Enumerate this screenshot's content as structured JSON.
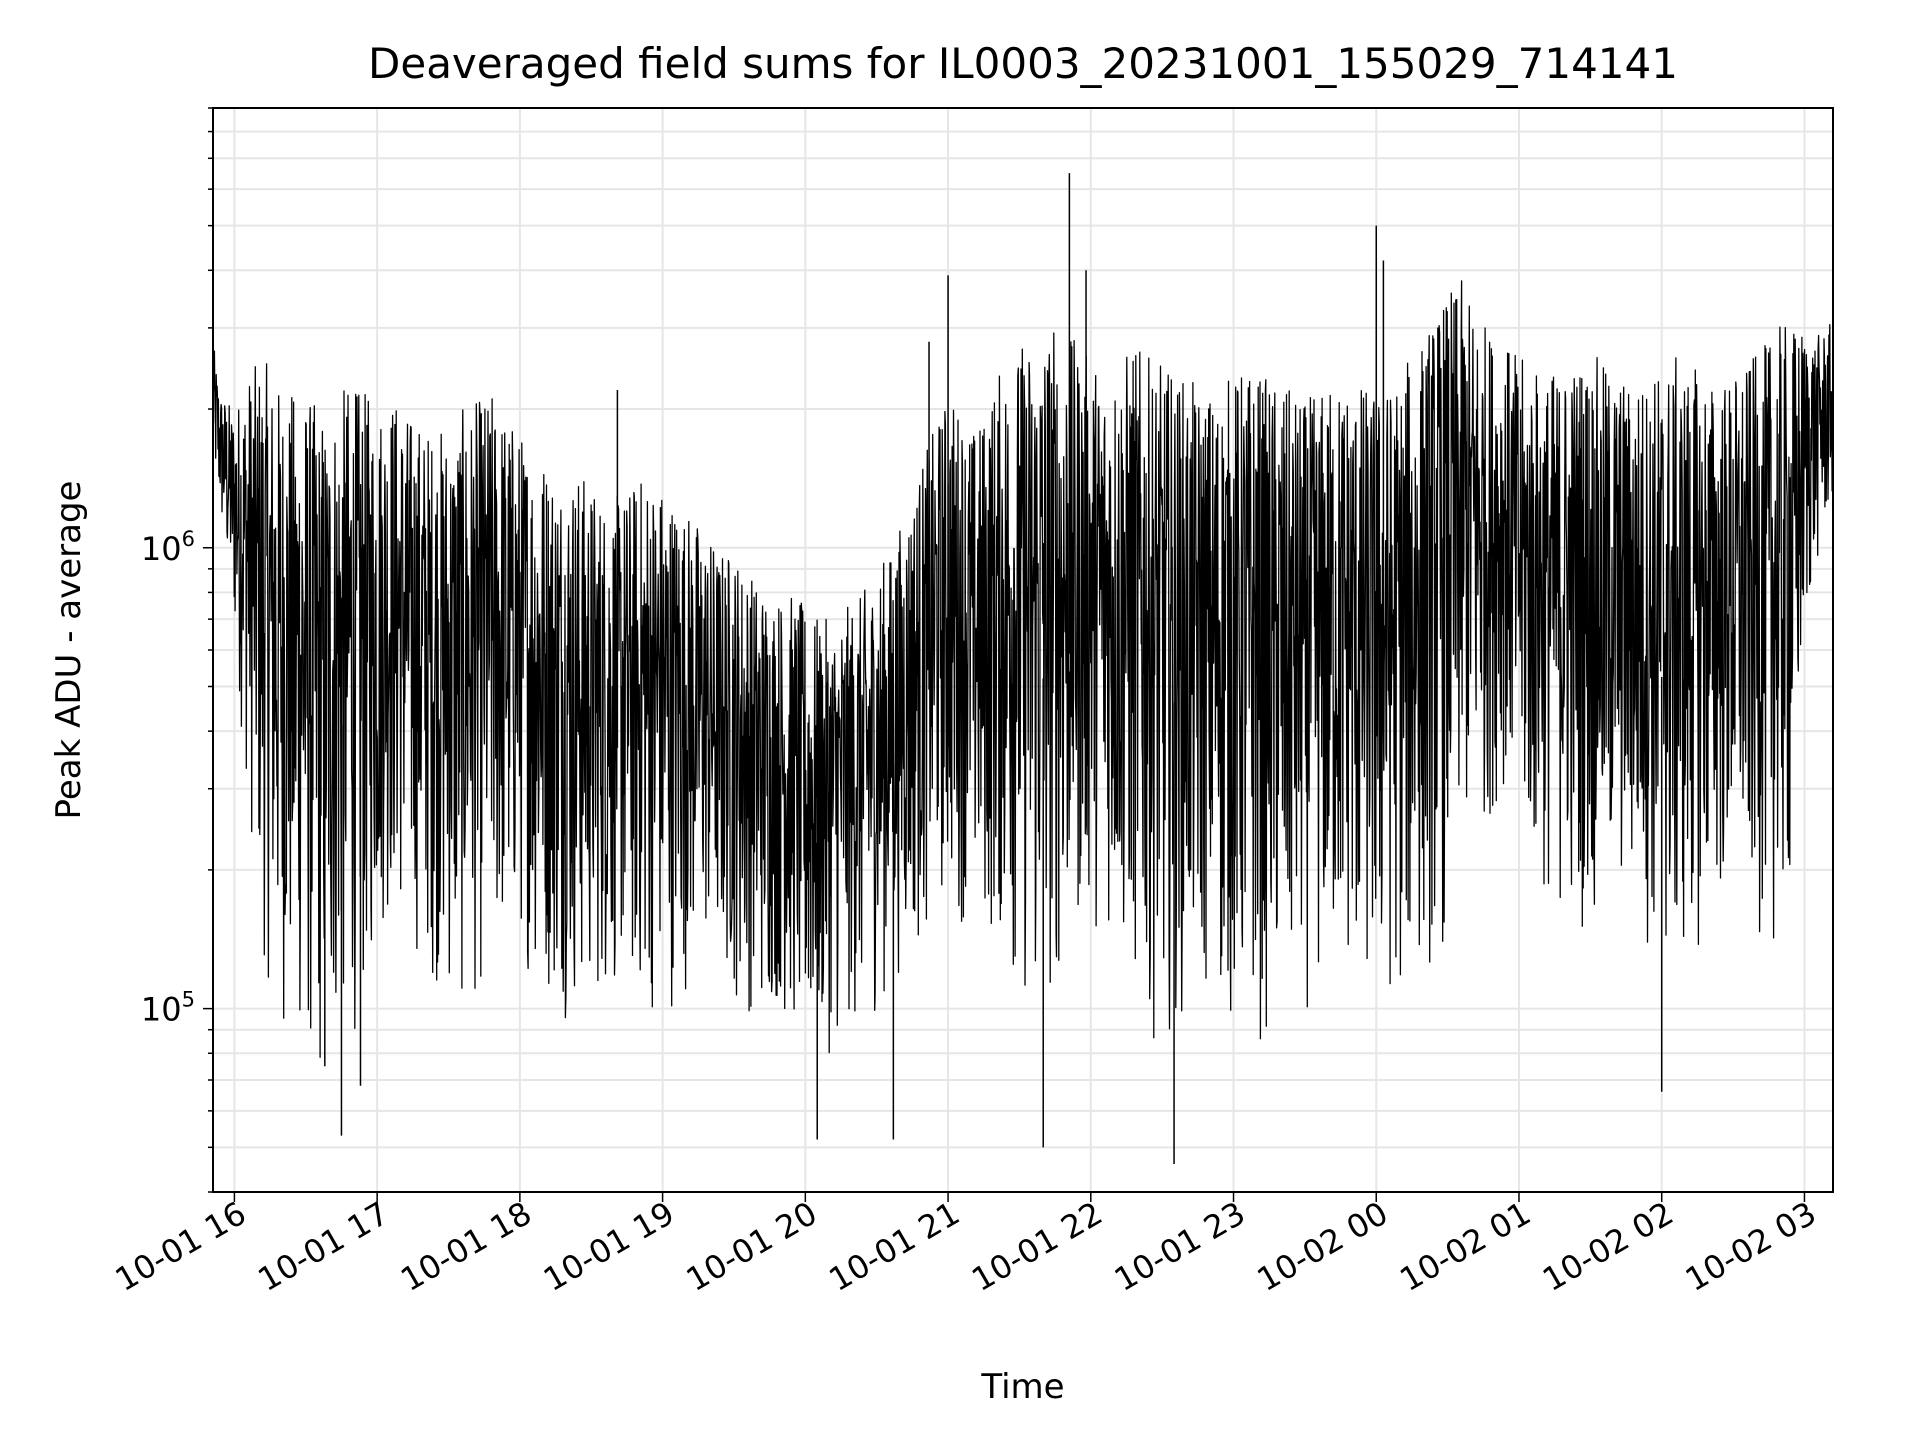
{
  "chart_data": {
    "type": "line",
    "title": "Deaveraged field sums for IL0003_20231001_155029_714141",
    "xlabel": "Time",
    "ylabel": "Peak ADU - average",
    "yscale": "log",
    "xlim": [
      "2023-10-01 15:51",
      "2023-10-02 03:12"
    ],
    "ylim": [
      40000,
      9000000
    ],
    "grid": true,
    "series_color": "#000000",
    "x_ticks": [
      {
        "value": "2023-10-01 16:00",
        "label": "10-01 16"
      },
      {
        "value": "2023-10-01 17:00",
        "label": "10-01 17"
      },
      {
        "value": "2023-10-01 18:00",
        "label": "10-01 18"
      },
      {
        "value": "2023-10-01 19:00",
        "label": "10-01 19"
      },
      {
        "value": "2023-10-01 20:00",
        "label": "10-01 20"
      },
      {
        "value": "2023-10-01 21:00",
        "label": "10-01 21"
      },
      {
        "value": "2023-10-01 22:00",
        "label": "10-01 22"
      },
      {
        "value": "2023-10-01 23:00",
        "label": "10-01 23"
      },
      {
        "value": "2023-10-02 00:00",
        "label": "10-02 00"
      },
      {
        "value": "2023-10-02 01:00",
        "label": "10-02 01"
      },
      {
        "value": "2023-10-02 02:00",
        "label": "10-02 02"
      },
      {
        "value": "2023-10-02 03:00",
        "label": "10-02 03"
      }
    ],
    "y_ticks": [
      {
        "value": 100000,
        "base": "10",
        "exp": "5"
      },
      {
        "value": 1000000,
        "base": "10",
        "exp": "6"
      }
    ],
    "series": [
      {
        "x": [
          "2023-10-01 15:51",
          "2023-10-01 15:54",
          "2023-10-01 16:00",
          "2023-10-01 16:06",
          "2023-10-01 16:12",
          "2023-10-01 16:18",
          "2023-10-01 16:24",
          "2023-10-01 16:30",
          "2023-10-01 16:36",
          "2023-10-01 16:42",
          "2023-10-01 16:48",
          "2023-10-01 16:54",
          "2023-10-01 17:00",
          "2023-10-01 17:06",
          "2023-10-01 17:12",
          "2023-10-01 17:18",
          "2023-10-01 17:24",
          "2023-10-01 17:30",
          "2023-10-01 17:36",
          "2023-10-01 17:42",
          "2023-10-01 17:48",
          "2023-10-01 17:54",
          "2023-10-01 18:00",
          "2023-10-01 18:06",
          "2023-10-01 18:12",
          "2023-10-01 18:18",
          "2023-10-01 18:24",
          "2023-10-01 18:30",
          "2023-10-01 18:36",
          "2023-10-01 18:42",
          "2023-10-01 18:48",
          "2023-10-01 18:54",
          "2023-10-01 19:00",
          "2023-10-01 19:06",
          "2023-10-01 19:12",
          "2023-10-01 19:18",
          "2023-10-01 19:24",
          "2023-10-01 19:30",
          "2023-10-01 19:36",
          "2023-10-01 19:42",
          "2023-10-01 19:48",
          "2023-10-01 19:54",
          "2023-10-01 20:00",
          "2023-10-01 20:06",
          "2023-10-01 20:12",
          "2023-10-01 20:18",
          "2023-10-01 20:24",
          "2023-10-01 20:30",
          "2023-10-01 20:36",
          "2023-10-01 20:42",
          "2023-10-01 20:48",
          "2023-10-01 20:54",
          "2023-10-01 21:00",
          "2023-10-01 21:06",
          "2023-10-01 21:12",
          "2023-10-01 21:18",
          "2023-10-01 21:24",
          "2023-10-01 21:30",
          "2023-10-01 21:36",
          "2023-10-01 21:42",
          "2023-10-01 21:48",
          "2023-10-01 21:54",
          "2023-10-01 22:00",
          "2023-10-01 22:06",
          "2023-10-01 22:12",
          "2023-10-01 22:18",
          "2023-10-01 22:24",
          "2023-10-01 22:30",
          "2023-10-01 22:36",
          "2023-10-01 22:42",
          "2023-10-01 22:48",
          "2023-10-01 22:54",
          "2023-10-01 23:00",
          "2023-10-01 23:06",
          "2023-10-01 23:12",
          "2023-10-01 23:18",
          "2023-10-01 23:24",
          "2023-10-01 23:30",
          "2023-10-01 23:36",
          "2023-10-01 23:42",
          "2023-10-01 23:48",
          "2023-10-01 23:54",
          "2023-10-02 00:00",
          "2023-10-02 00:06",
          "2023-10-02 00:12",
          "2023-10-02 00:18",
          "2023-10-02 00:24",
          "2023-10-02 00:30",
          "2023-10-02 00:36",
          "2023-10-02 00:42",
          "2023-10-02 00:48",
          "2023-10-02 00:54",
          "2023-10-02 01:00",
          "2023-10-02 01:06",
          "2023-10-02 01:12",
          "2023-10-02 01:18",
          "2023-10-02 01:24",
          "2023-10-02 01:30",
          "2023-10-02 01:36",
          "2023-10-02 01:42",
          "2023-10-02 01:48",
          "2023-10-02 01:54",
          "2023-10-02 02:00",
          "2023-10-02 02:06",
          "2023-10-02 02:12",
          "2023-10-02 02:18",
          "2023-10-02 02:24",
          "2023-10-02 02:30",
          "2023-10-02 02:36",
          "2023-10-02 02:42",
          "2023-10-02 02:48",
          "2023-10-02 02:54",
          "2023-10-02 03:00",
          "2023-10-02 03:06",
          "2023-10-02 03:12"
        ],
        "low": [
          1400000,
          1100000,
          600000,
          250000,
          120000,
          90000,
          80000,
          70000,
          60000,
          75000,
          80000,
          90000,
          130000,
          150000,
          140000,
          120000,
          110000,
          95000,
          90000,
          100000,
          110000,
          120000,
          130000,
          110000,
          100000,
          95000,
          90000,
          95000,
          100000,
          105000,
          95000,
          90000,
          95000,
          100000,
          110000,
          120000,
          115000,
          100000,
          95000,
          90000,
          95000,
          85000,
          70000,
          75000,
          80000,
          85000,
          90000,
          95000,
          110000,
          120000,
          130000,
          150000,
          160000,
          150000,
          140000,
          130000,
          120000,
          100000,
          80000,
          90000,
          110000,
          130000,
          150000,
          140000,
          120000,
          100000,
          90000,
          80000,
          90000,
          100000,
          100000,
          90000,
          85000,
          80000,
          80000,
          85000,
          90000,
          95000,
          100000,
          110000,
          105000,
          95000,
          90000,
          95000,
          100000,
          110000,
          120000,
          130000,
          200000,
          220000,
          250000,
          300000,
          200000,
          180000,
          160000,
          150000,
          150000,
          140000,
          150000,
          160000,
          150000,
          130000,
          110000,
          100000,
          120000,
          140000,
          150000,
          160000,
          150000,
          140000,
          130000,
          140000,
          600000,
          900000,
          1200000
        ],
        "high": [
          2800000,
          2200000,
          2000000,
          2400000,
          2600000,
          2300000,
          2200000,
          2200000,
          2000000,
          2100000,
          2300000,
          2200000,
          2100000,
          2200000,
          2000000,
          1900000,
          1800000,
          1900000,
          2000000,
          2100000,
          2200000,
          2000000,
          1800000,
          1700000,
          1600000,
          1500000,
          1500000,
          1400000,
          1300000,
          1300000,
          1400000,
          1500000,
          1400000,
          1300000,
          1200000,
          1100000,
          1000000,
          1000000,
          900000,
          850000,
          800000,
          800000,
          750000,
          700000,
          700000,
          750000,
          800000,
          900000,
          1000000,
          1200000,
          1500000,
          1800000,
          2200000,
          2000000,
          1800000,
          2200000,
          2600000,
          2800000,
          3000000,
          3200000,
          3000000,
          2800000,
          2600000,
          2500000,
          2600000,
          2800000,
          2600000,
          2500000,
          2400000,
          2300000,
          2200000,
          2300000,
          2400000,
          2500000,
          2400000,
          2300000,
          2200000,
          2100000,
          2200000,
          2300000,
          2400000,
          2300000,
          2200000,
          2300000,
          2500000,
          2800000,
          3200000,
          3600000,
          3800000,
          3300000,
          3000000,
          2800000,
          2600000,
          2500000,
          2400000,
          2500000,
          2600000,
          2700000,
          2500000,
          2400000,
          2300000,
          2400000,
          2500000,
          2600000,
          2500000,
          2400000,
          2300000,
          2400000,
          2500000,
          2700000,
          3000000,
          3100000,
          3000000,
          2900000,
          3100000
        ]
      }
    ],
    "spikes": [
      {
        "x": "2023-10-01 16:38",
        "y": 75000
      },
      {
        "x": "2023-10-01 16:45",
        "y": 53000
      },
      {
        "x": "2023-10-01 16:53",
        "y": 68000
      },
      {
        "x": "2023-10-01 18:41",
        "y": 2200000
      },
      {
        "x": "2023-10-01 20:05",
        "y": 52000
      },
      {
        "x": "2023-10-01 20:37",
        "y": 52000
      },
      {
        "x": "2023-10-01 20:52",
        "y": 2800000
      },
      {
        "x": "2023-10-01 21:00",
        "y": 3900000
      },
      {
        "x": "2023-10-01 21:40",
        "y": 50000
      },
      {
        "x": "2023-10-01 21:51",
        "y": 6500000
      },
      {
        "x": "2023-10-01 21:58",
        "y": 4000000
      },
      {
        "x": "2023-10-01 22:35",
        "y": 46000
      },
      {
        "x": "2023-10-02 00:00",
        "y": 5000000
      },
      {
        "x": "2023-10-02 00:03",
        "y": 4200000
      },
      {
        "x": "2023-10-02 02:00",
        "y": 66000
      }
    ]
  }
}
